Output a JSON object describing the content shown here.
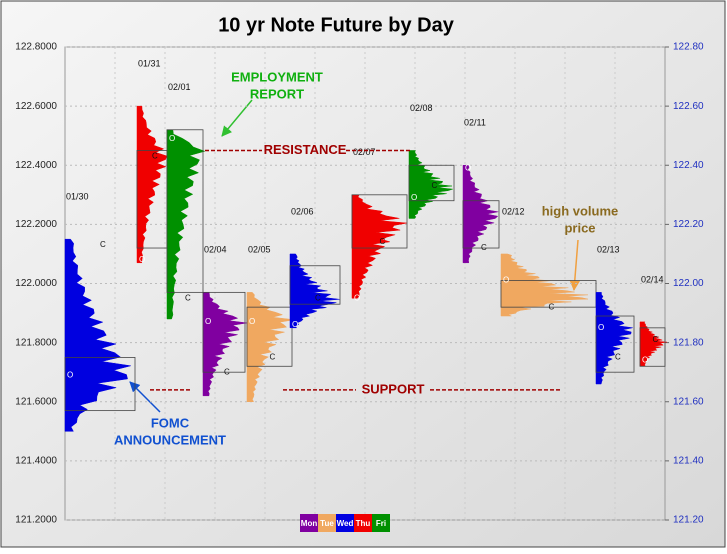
{
  "chart_data": {
    "type": "market-profile",
    "title": "10 yr Note Future by Day",
    "ylim": [
      121.2,
      122.8
    ],
    "yticks": [
      {
        "value": 121.2,
        "label": "121.2000"
      },
      {
        "value": 121.4,
        "label": "121.4000"
      },
      {
        "value": 121.6,
        "label": "121.6000"
      },
      {
        "value": 121.8,
        "label": "121.8000"
      },
      {
        "value": 122.0,
        "label": "122.0000"
      },
      {
        "value": 122.2,
        "label": "122.2000"
      },
      {
        "value": 122.4,
        "label": "122.4000"
      },
      {
        "value": 122.6,
        "label": "122.6000"
      },
      {
        "value": 122.8,
        "label": "122.8000"
      }
    ],
    "y2lim": [
      121.2,
      122.8
    ],
    "y2ticks": [
      {
        "value": 121.2,
        "label": "121.20"
      },
      {
        "value": 121.4,
        "label": "121.40"
      },
      {
        "value": 121.6,
        "label": "121.60"
      },
      {
        "value": 121.8,
        "label": "121.80"
      },
      {
        "value": 122.0,
        "label": "122.00"
      },
      {
        "value": 122.2,
        "label": "122.20"
      },
      {
        "value": 122.4,
        "label": "122.40"
      },
      {
        "value": 122.6,
        "label": "122.60"
      },
      {
        "value": 122.8,
        "label": "122.80"
      }
    ],
    "grid": true,
    "open_label": "O",
    "close_label": "C",
    "days": [
      {
        "date": "01/30",
        "color": "#0000e0",
        "high": 122.15,
        "low": 121.5,
        "vah": 121.75,
        "val": 121.57,
        "poc": 121.69,
        "open": 121.69,
        "close": 122.13
      },
      {
        "date": "01/31",
        "color": "#f00000",
        "high": 122.6,
        "low": 122.07,
        "vah": 122.45,
        "val": 122.12,
        "poc": 122.43,
        "open": 122.08,
        "close": 122.43
      },
      {
        "date": "02/01",
        "color": "#009000",
        "high": 122.52,
        "low": 121.88,
        "vah": 122.52,
        "val": 121.97,
        "poc": 122.46,
        "open": 122.49,
        "close": 121.95
      },
      {
        "date": "02/04",
        "color": "#8000a0",
        "high": 121.97,
        "low": 121.62,
        "vah": 121.97,
        "val": 121.7,
        "poc": 121.87,
        "open": 121.87,
        "close": 121.7
      },
      {
        "date": "02/05",
        "color": "#f0a860",
        "high": 121.97,
        "low": 121.6,
        "vah": 121.92,
        "val": 121.72,
        "poc": 121.88,
        "open": 121.87,
        "close": 121.75
      },
      {
        "date": "02/06",
        "color": "#0000e0",
        "high": 122.1,
        "low": 121.85,
        "vah": 122.06,
        "val": 121.93,
        "poc": 121.94,
        "open": 121.86,
        "close": 121.95
      },
      {
        "date": "02/07",
        "color": "#f00000",
        "high": 122.3,
        "low": 121.95,
        "vah": 122.3,
        "val": 122.12,
        "poc": 122.21,
        "open": 121.95,
        "close": 122.14
      },
      {
        "date": "02/08",
        "color": "#009000",
        "high": 122.45,
        "low": 122.22,
        "vah": 122.4,
        "val": 122.28,
        "poc": 122.32,
        "open": 122.29,
        "close": 122.33
      },
      {
        "date": "02/11",
        "color": "#8000a0",
        "high": 122.4,
        "low": 122.07,
        "vah": 122.28,
        "val": 122.12,
        "poc": 122.23,
        "open": 122.39,
        "close": 122.12
      },
      {
        "date": "02/12",
        "color": "#f0a860",
        "high": 122.1,
        "low": 121.89,
        "vah": 122.01,
        "val": 121.92,
        "poc": 121.95,
        "open": 122.01,
        "close": 121.92
      },
      {
        "date": "02/13",
        "color": "#0000e0",
        "high": 121.97,
        "low": 121.66,
        "vah": 121.89,
        "val": 121.7,
        "poc": 121.84,
        "open": 121.85,
        "close": 121.75
      },
      {
        "date": "02/14",
        "color": "#f00000",
        "high": 121.87,
        "low": 121.72,
        "vah": 121.85,
        "val": 121.72,
        "poc": 121.8,
        "open": 121.74,
        "close": 121.81
      }
    ],
    "levels": [
      {
        "label": "RESISTANCE",
        "value": 122.45,
        "color": "#a00000"
      },
      {
        "label": "SUPPORT",
        "value": 121.64,
        "color": "#a00000"
      }
    ],
    "annotations": [
      {
        "lines": [
          "EMPLOYMENT",
          "REPORT"
        ],
        "color": "#10b010"
      },
      {
        "lines": [
          "FOMC",
          "ANNOUNCEMENT"
        ],
        "color": "#1050d0"
      },
      {
        "lines": [
          "high volume",
          "price"
        ],
        "color": "#8a6a20"
      }
    ],
    "legend": [
      {
        "name": "Mon",
        "color": "#8000a0"
      },
      {
        "name": "Tue",
        "color": "#f0a860"
      },
      {
        "name": "Wed",
        "color": "#0000e0"
      },
      {
        "name": "Thu",
        "color": "#f00000"
      },
      {
        "name": "Fri",
        "color": "#009000"
      }
    ]
  }
}
